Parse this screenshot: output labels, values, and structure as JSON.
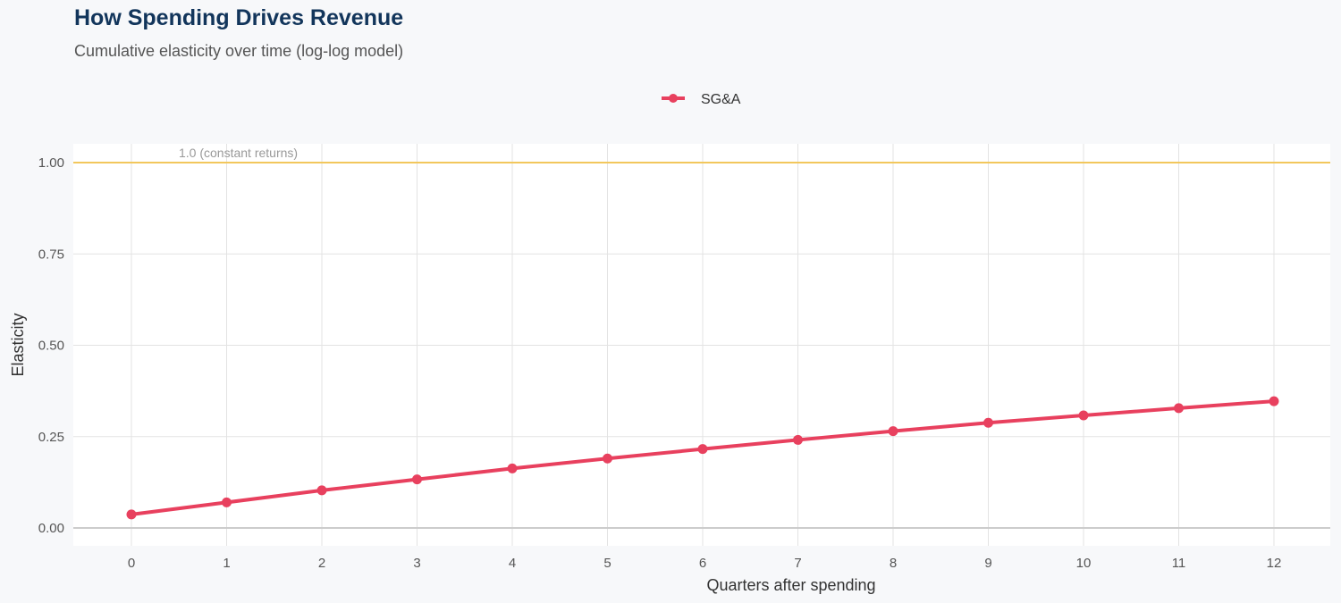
{
  "chart_data": {
    "type": "line",
    "title": "How Spending Drives Revenue",
    "subtitle": "Cumulative elasticity over time (log-log model)",
    "xlabel": "Quarters after spending",
    "ylabel": "Elasticity",
    "x": [
      0,
      1,
      2,
      3,
      4,
      5,
      6,
      7,
      8,
      9,
      10,
      11,
      12
    ],
    "series": [
      {
        "name": "SG&A",
        "color": "#e8405e",
        "values": [
          0.037,
          0.07,
          0.103,
          0.133,
          0.163,
          0.19,
          0.216,
          0.241,
          0.265,
          0.288,
          0.308,
          0.328,
          0.347
        ]
      }
    ],
    "xlim": [
      -0.6,
      12.6
    ],
    "ylim": [
      -0.05,
      1.05
    ],
    "yticks": [
      "0.00",
      "0.25",
      "0.50",
      "0.75",
      "1.00"
    ],
    "xticks": [
      "0",
      "1",
      "2",
      "3",
      "4",
      "5",
      "6",
      "7",
      "8",
      "9",
      "10",
      "11",
      "12"
    ],
    "reference_line": {
      "y": 1.0,
      "label": "1.0 (constant returns)",
      "color": "#f2c75c"
    },
    "grid": true,
    "legend_position": "top"
  }
}
